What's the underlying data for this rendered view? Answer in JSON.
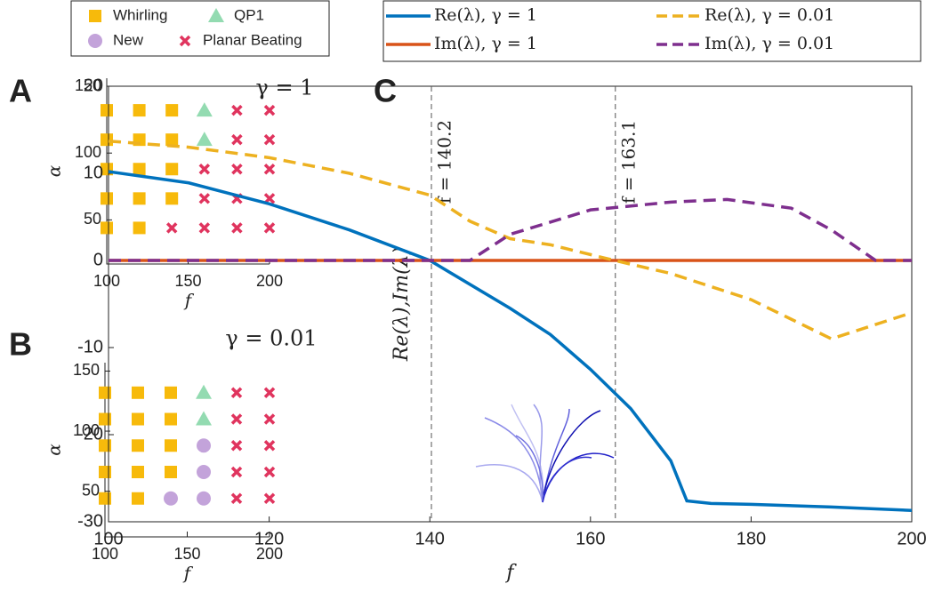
{
  "chart_data": [
    {
      "type": "scatter",
      "panel_label": "A",
      "annotation": "γ = 1",
      "x_label": "f",
      "y_label": "α",
      "xlim": [
        100,
        200
      ],
      "xticks": [
        100,
        150,
        200
      ],
      "ylim": [
        17,
        156
      ],
      "yticks": [
        50,
        100,
        150
      ],
      "series": [
        {
          "name": "Whirling",
          "color": "#f7ba0b",
          "marker": "square",
          "x": [
            100,
            120,
            140,
            100,
            120,
            140,
            100,
            120,
            140,
            100,
            120,
            140,
            100,
            120
          ],
          "values": [
            132,
            132,
            132,
            110,
            110,
            110,
            88,
            88,
            88,
            66,
            66,
            66,
            44,
            44
          ]
        },
        {
          "name": "QP1",
          "color": "#93dbb1",
          "marker": "triangle",
          "x": [
            160,
            160
          ],
          "values": [
            132,
            110
          ]
        },
        {
          "name": "Planar Beating",
          "color": "#e0345e",
          "marker": "x",
          "x": [
            180,
            200,
            180,
            200,
            160,
            180,
            200,
            160,
            180,
            200,
            140,
            160,
            180,
            200
          ],
          "values": [
            132,
            132,
            110,
            110,
            88,
            88,
            88,
            66,
            66,
            66,
            44,
            44,
            44,
            44
          ]
        }
      ]
    },
    {
      "type": "scatter",
      "panel_label": "B",
      "annotation": "γ = 0.01",
      "x_label": "f",
      "y_label": "α",
      "xlim": [
        100,
        200
      ],
      "xticks": [
        100,
        150,
        200
      ],
      "ylim": [
        12,
        157
      ],
      "yticks": [
        50,
        100,
        150
      ],
      "series": [
        {
          "name": "Whirling",
          "color": "#f7ba0b",
          "marker": "square",
          "x": [
            100,
            120,
            140,
            100,
            120,
            140,
            100,
            120,
            140,
            100,
            120,
            140,
            100,
            120
          ],
          "values": [
            132,
            132,
            132,
            110,
            110,
            110,
            88,
            88,
            88,
            66,
            66,
            66,
            44,
            44
          ]
        },
        {
          "name": "QP1",
          "color": "#93dbb1",
          "marker": "triangle",
          "x": [
            160,
            160
          ],
          "values": [
            132,
            110
          ]
        },
        {
          "name": "New",
          "color": "#c3a3da",
          "marker": "circle",
          "x": [
            160,
            160,
            140,
            160
          ],
          "values": [
            88,
            66,
            44,
            44
          ]
        },
        {
          "name": "Planar Beating",
          "color": "#e0345e",
          "marker": "x",
          "x": [
            180,
            200,
            180,
            200,
            180,
            200,
            180,
            200,
            180,
            200
          ],
          "values": [
            132,
            132,
            110,
            110,
            88,
            88,
            66,
            66,
            44,
            44
          ]
        }
      ]
    },
    {
      "type": "line",
      "panel_label": "C",
      "x_label": "f",
      "y_label": "Re(λ),Im(λ)",
      "xlim": [
        100,
        200
      ],
      "xticks": [
        100,
        120,
        140,
        160,
        180,
        200
      ],
      "ylim": [
        -30,
        20
      ],
      "yticks": [
        -30,
        -20,
        -10,
        0,
        10,
        20
      ],
      "vlines": [
        {
          "value": 140.2,
          "label": "f = 140.2"
        },
        {
          "value": 163.1,
          "label": "f = 163.1"
        }
      ],
      "series": [
        {
          "name": "Re(λ), γ = 1",
          "color": "#0072bd",
          "dashed": false,
          "x": [
            100,
            110,
            120,
            130,
            140,
            150,
            155,
            160,
            165,
            170,
            172,
            175,
            180,
            190,
            200
          ],
          "values": [
            10.2,
            8.9,
            6.5,
            3.5,
            0,
            -5.5,
            -8.5,
            -12.5,
            -17,
            -23,
            -27.6,
            -27.9,
            -28,
            -28.3,
            -28.7
          ]
        },
        {
          "name": "Im(λ), γ = 1",
          "color": "#d95319",
          "dashed": false,
          "x": [
            100,
            200
          ],
          "values": [
            0,
            0
          ]
        },
        {
          "name": "Re(λ), γ = 0.01",
          "color": "#edb120",
          "dashed": true,
          "x": [
            100,
            110,
            120,
            130,
            140,
            145,
            150,
            155,
            163,
            170,
            180,
            190,
            200
          ],
          "values": [
            13.7,
            13,
            11.8,
            10,
            7.5,
            4.5,
            2.5,
            1.8,
            0,
            -1.5,
            -4.5,
            -9,
            -6
          ]
        },
        {
          "name": "Im(λ), γ = 0.01",
          "color": "#7e2f8e",
          "dashed": true,
          "x": [
            100,
            145,
            150,
            160,
            170,
            177,
            185,
            190,
            195.5,
            200
          ],
          "values": [
            0,
            0,
            3,
            5.8,
            6.7,
            7,
            6,
            3.5,
            0,
            0
          ]
        }
      ]
    }
  ]
}
